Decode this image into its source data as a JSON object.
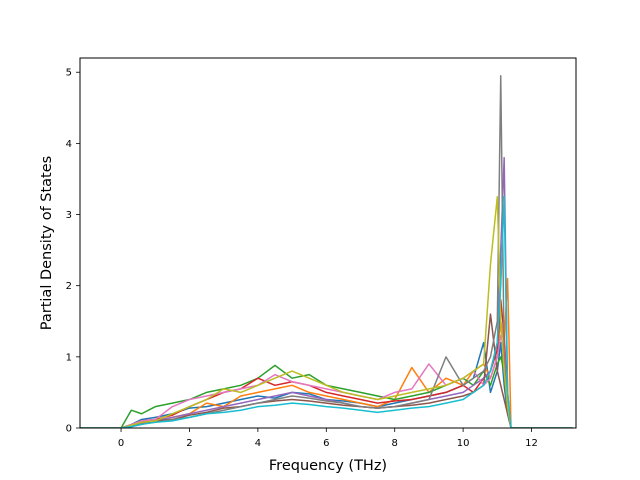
{
  "chart_data": {
    "type": "line",
    "title": "",
    "xlabel": "Frequency (THz)",
    "ylabel": "Partial Density of States",
    "xlim": [
      -1.2,
      13.3
    ],
    "ylim": [
      0,
      5.2
    ],
    "xticks": [
      0,
      2,
      4,
      6,
      8,
      10,
      12
    ],
    "yticks": [
      0,
      1,
      2,
      3,
      4,
      5
    ],
    "grid": false,
    "legend": "none",
    "x": [
      -1.2,
      0.0,
      0.3,
      0.6,
      1.0,
      1.5,
      2.0,
      2.5,
      3.0,
      3.5,
      4.0,
      4.5,
      5.0,
      5.5,
      6.0,
      6.5,
      7.0,
      7.5,
      8.0,
      8.5,
      9.0,
      9.5,
      10.0,
      10.3,
      10.6,
      10.8,
      11.0,
      11.1,
      11.2,
      11.3,
      11.4,
      11.6,
      12.0,
      13.2
    ],
    "series": [
      {
        "color": "#1f77b4",
        "values": [
          0,
          0,
          0.05,
          0.12,
          0.15,
          0.2,
          0.28,
          0.3,
          0.35,
          0.4,
          0.45,
          0.42,
          0.5,
          0.48,
          0.4,
          0.38,
          0.35,
          0.3,
          0.35,
          0.4,
          0.45,
          0.5,
          0.6,
          0.7,
          1.2,
          0.5,
          0.8,
          1.2,
          0.6,
          0.2,
          0,
          0,
          0,
          0
        ]
      },
      {
        "color": "#ff7f0e",
        "values": [
          0,
          0,
          0.03,
          0.08,
          0.1,
          0.15,
          0.2,
          0.35,
          0.3,
          0.45,
          0.5,
          0.55,
          0.6,
          0.5,
          0.45,
          0.4,
          0.35,
          0.3,
          0.4,
          0.85,
          0.5,
          0.7,
          0.6,
          0.8,
          0.9,
          0.7,
          1.0,
          1.5,
          1.2,
          2.1,
          0,
          0,
          0,
          0
        ]
      },
      {
        "color": "#2ca02c",
        "values": [
          0,
          0,
          0.25,
          0.2,
          0.3,
          0.35,
          0.4,
          0.5,
          0.55,
          0.6,
          0.7,
          0.88,
          0.7,
          0.75,
          0.6,
          0.55,
          0.5,
          0.45,
          0.4,
          0.45,
          0.5,
          0.6,
          0.7,
          0.6,
          0.8,
          0.6,
          0.9,
          1.0,
          0.8,
          0.3,
          0,
          0,
          0,
          0
        ]
      },
      {
        "color": "#d62728",
        "values": [
          0,
          0,
          0.04,
          0.1,
          0.12,
          0.18,
          0.3,
          0.4,
          0.5,
          0.55,
          0.7,
          0.6,
          0.65,
          0.6,
          0.5,
          0.45,
          0.4,
          0.35,
          0.38,
          0.4,
          0.45,
          0.5,
          0.6,
          0.5,
          0.7,
          0.8,
          1.1,
          1.8,
          1.3,
          0.4,
          0,
          0,
          0,
          0
        ]
      },
      {
        "color": "#9467bd",
        "values": [
          0,
          0,
          0.02,
          0.05,
          0.1,
          0.15,
          0.2,
          0.25,
          0.3,
          0.35,
          0.4,
          0.45,
          0.5,
          0.45,
          0.4,
          0.35,
          0.3,
          0.28,
          0.3,
          0.35,
          0.4,
          0.45,
          0.5,
          0.6,
          0.7,
          0.8,
          1.2,
          2.5,
          3.8,
          0.5,
          0,
          0,
          0,
          0
        ]
      },
      {
        "color": "#8c564b",
        "values": [
          0,
          0,
          0.03,
          0.07,
          0.1,
          0.12,
          0.18,
          0.22,
          0.28,
          0.3,
          0.35,
          0.38,
          0.4,
          0.38,
          0.35,
          0.32,
          0.3,
          0.28,
          0.3,
          0.32,
          0.35,
          0.4,
          0.45,
          0.5,
          0.6,
          1.6,
          0.8,
          0.6,
          0.4,
          0.2,
          0,
          0,
          0,
          0
        ]
      },
      {
        "color": "#e377c2",
        "values": [
          0,
          0,
          0.05,
          0.1,
          0.12,
          0.3,
          0.4,
          0.45,
          0.5,
          0.55,
          0.6,
          0.75,
          0.65,
          0.6,
          0.55,
          0.5,
          0.45,
          0.4,
          0.5,
          0.55,
          0.9,
          0.6,
          0.7,
          0.8,
          0.6,
          0.7,
          1.0,
          1.3,
          1.1,
          0.3,
          0,
          0,
          0,
          0
        ]
      },
      {
        "color": "#7f7f7f",
        "values": [
          0,
          0,
          0.02,
          0.06,
          0.08,
          0.12,
          0.15,
          0.2,
          0.25,
          0.3,
          0.35,
          0.4,
          0.45,
          0.42,
          0.38,
          0.35,
          0.3,
          0.28,
          0.3,
          0.35,
          0.4,
          1.0,
          0.6,
          0.7,
          0.8,
          1.0,
          1.5,
          4.95,
          1.0,
          0.3,
          0,
          0,
          0,
          0
        ]
      },
      {
        "color": "#bcbd22",
        "values": [
          0,
          0,
          0.04,
          0.08,
          0.1,
          0.2,
          0.3,
          0.4,
          0.55,
          0.5,
          0.6,
          0.7,
          0.8,
          0.7,
          0.6,
          0.5,
          0.45,
          0.4,
          0.45,
          0.5,
          0.55,
          0.6,
          0.7,
          0.8,
          0.9,
          2.3,
          3.25,
          1.5,
          0.8,
          0.3,
          0,
          0,
          0,
          0
        ]
      },
      {
        "color": "#17becf",
        "values": [
          0,
          0,
          0.02,
          0.05,
          0.08,
          0.1,
          0.15,
          0.2,
          0.22,
          0.25,
          0.3,
          0.32,
          0.35,
          0.33,
          0.3,
          0.28,
          0.25,
          0.22,
          0.25,
          0.28,
          0.3,
          0.35,
          0.4,
          0.5,
          0.6,
          0.8,
          1.2,
          2.0,
          3.25,
          0.5,
          0,
          0,
          0,
          0
        ]
      }
    ]
  }
}
